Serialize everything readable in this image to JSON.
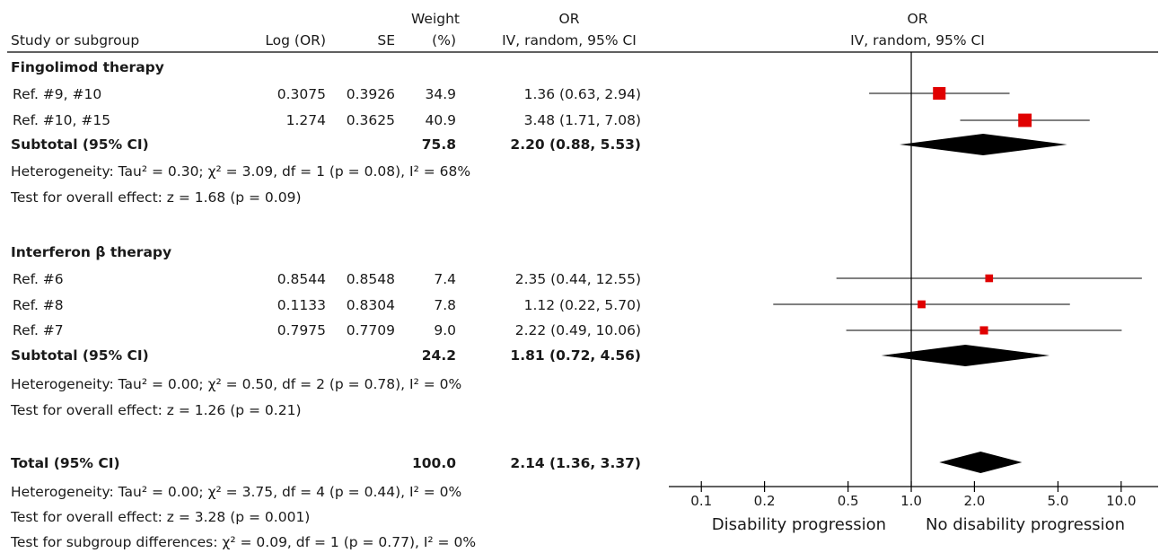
{
  "chart_data": {
    "type": "forest",
    "headers": {
      "study": "Study or subgroup",
      "log_or": "Log (OR)",
      "se": "SE",
      "weight_top": "Weight",
      "weight_bottom": "(%)",
      "or_top": "OR",
      "or_bottom": "IV, random, 95% CI",
      "plot_top": "OR",
      "plot_bottom": "IV, random, 95% CI"
    },
    "groups": [
      {
        "title": "Fingolimod therapy",
        "studies": [
          {
            "name": "Ref. #9, #10",
            "log_or": "0.3075",
            "se": "0.3926",
            "weight": "34.9",
            "ci_text": "1.36 (0.63, 2.94)",
            "or": 1.36,
            "lo": 0.63,
            "hi": 2.94,
            "w": 34.9
          },
          {
            "name": "Ref. #10, #15",
            "log_or": "1.274",
            "se": "0.3625",
            "weight": "40.9",
            "ci_text": "3.48 (1.71, 7.08)",
            "or": 3.48,
            "lo": 1.71,
            "hi": 7.08,
            "w": 40.9
          }
        ],
        "subtotal": {
          "label": "Subtotal (95% CI)",
          "weight": "75.8",
          "ci_text": "2.20 (0.88, 5.53)",
          "or": 2.2,
          "lo": 0.88,
          "hi": 5.53
        },
        "heterogeneity": "Heterogeneity: Tau² = 0.30; χ² = 3.09, df = 1 (p = 0.08), I² = 68%",
        "overall": "Test for overall effect: z = 1.68 (p = 0.09)"
      },
      {
        "title": "Interferon β therapy",
        "studies": [
          {
            "name": "Ref. #6",
            "log_or": "0.8544",
            "se": "0.8548",
            "weight": "7.4",
            "ci_text": "2.35 (0.44, 12.55)",
            "or": 2.35,
            "lo": 0.44,
            "hi": 12.55,
            "w": 7.4
          },
          {
            "name": "Ref. #8",
            "log_or": "0.1133",
            "se": "0.8304",
            "weight": "7.8",
            "ci_text": "1.12 (0.22, 5.70)",
            "or": 1.12,
            "lo": 0.22,
            "hi": 5.7,
            "w": 7.8
          },
          {
            "name": "Ref. #7",
            "log_or": "0.7975",
            "se": "0.7709",
            "weight": "9.0",
            "ci_text": "2.22 (0.49, 10.06)",
            "or": 2.22,
            "lo": 0.49,
            "hi": 10.06,
            "w": 9.0
          }
        ],
        "subtotal": {
          "label": "Subtotal (95% CI)",
          "weight": "24.2",
          "ci_text": "1.81 (0.72, 4.56)",
          "or": 1.81,
          "lo": 0.72,
          "hi": 4.56
        },
        "heterogeneity": "Heterogeneity: Tau² = 0.00; χ² = 0.50, df = 2 (p = 0.78), I² = 0%",
        "overall": "Test for overall effect: z = 1.26 (p = 0.21)"
      }
    ],
    "total": {
      "label": "Total (95% CI)",
      "weight": "100.0",
      "ci_text": "2.14 (1.36, 3.37)",
      "or": 2.14,
      "lo": 1.36,
      "hi": 3.37,
      "heterogeneity": "Heterogeneity: Tau² = 0.00; χ² = 3.75, df = 4 (p = 0.44), I² = 0%",
      "overall": "Test for overall effect: z = 3.28 (p = 0.001)",
      "subgroup": "Test for subgroup differences: χ² = 0.09, df = 1 (p = 0.77), I² = 0%"
    },
    "axis": {
      "scale": "log",
      "xlim": [
        0.07,
        15
      ],
      "ticks": [
        0.1,
        0.2,
        0.5,
        1.0,
        2.0,
        5.0,
        10.0
      ],
      "tick_labels": [
        "0.1",
        "0.2",
        "0.5",
        "1.0",
        "2.0",
        "5.0",
        "10.0"
      ],
      "left_label": "Disability progression",
      "right_label": "No disability progression",
      "reference": 1.0
    },
    "colors": {
      "study_marker": "#e00000",
      "summary": "#000000",
      "line": "#000000"
    }
  }
}
